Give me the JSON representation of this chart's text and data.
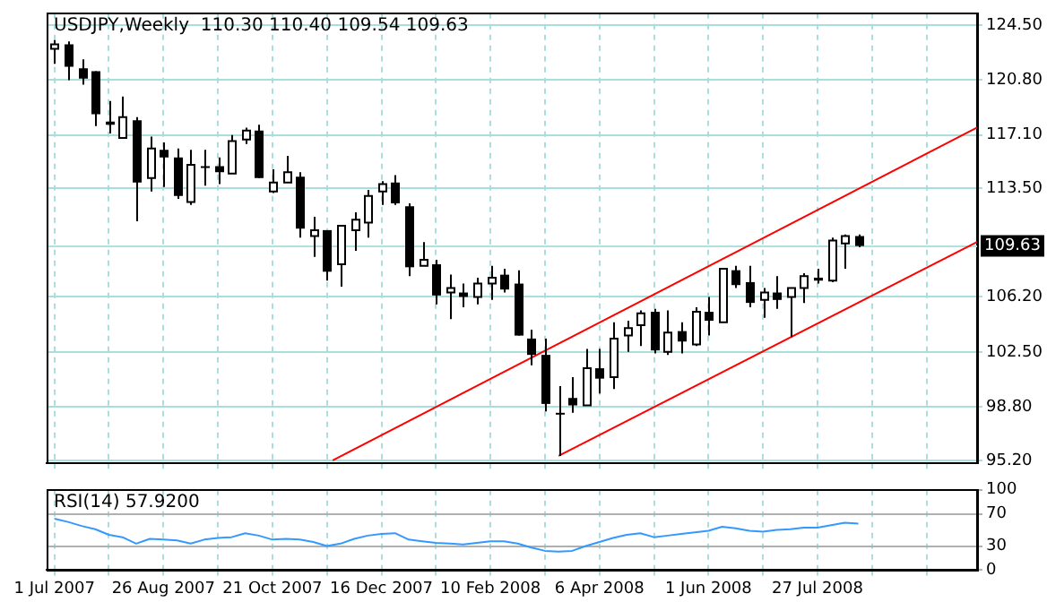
{
  "chart_data": [
    {
      "type": "candlestick",
      "title": "USDJPY,Weekly  110.30 110.40 109.54 109.63",
      "x": [
        "2007-07-01",
        "2007-07-08",
        "2007-07-15",
        "2007-07-22",
        "2007-07-29",
        "2007-08-05",
        "2007-08-12",
        "2007-08-19",
        "2007-08-26",
        "2007-09-02",
        "2007-09-09",
        "2007-09-16",
        "2007-09-23",
        "2007-09-30",
        "2007-10-07",
        "2007-10-14",
        "2007-10-21",
        "2007-10-28",
        "2007-11-04",
        "2007-11-11",
        "2007-11-18",
        "2007-11-25",
        "2007-12-02",
        "2007-12-09",
        "2007-12-16",
        "2007-12-23",
        "2007-12-30",
        "2008-01-06",
        "2008-01-13",
        "2008-01-20",
        "2008-01-27",
        "2008-02-03",
        "2008-02-10",
        "2008-02-17",
        "2008-02-24",
        "2008-03-02",
        "2008-03-09",
        "2008-03-16",
        "2008-03-23",
        "2008-03-30",
        "2008-04-06",
        "2008-04-13",
        "2008-04-20",
        "2008-04-27",
        "2008-05-04",
        "2008-05-11",
        "2008-05-18",
        "2008-05-25",
        "2008-06-01",
        "2008-06-08",
        "2008-06-15",
        "2008-06-22",
        "2008-06-29",
        "2008-07-06",
        "2008-07-13",
        "2008-07-20",
        "2008-07-27",
        "2008-08-03",
        "2008-08-10",
        "2008-08-17"
      ],
      "ohlc": [
        [
          122.9,
          123.5,
          121.9,
          123.2
        ],
        [
          123.2,
          123.4,
          120.8,
          121.7
        ],
        [
          121.6,
          122.2,
          120.5,
          120.9
        ],
        [
          121.4,
          121.4,
          117.7,
          118.5
        ],
        [
          118.0,
          119.4,
          117.2,
          117.8
        ],
        [
          116.9,
          119.7,
          116.9,
          118.3
        ],
        [
          118.1,
          118.3,
          111.3,
          113.9
        ],
        [
          114.2,
          117.0,
          113.3,
          116.2
        ],
        [
          116.1,
          116.6,
          113.6,
          115.6
        ],
        [
          115.6,
          116.2,
          112.8,
          113.0
        ],
        [
          112.6,
          116.1,
          112.4,
          115.1
        ],
        [
          115.0,
          116.1,
          113.7,
          115.0
        ],
        [
          115.0,
          115.6,
          113.8,
          114.6
        ],
        [
          114.5,
          117.1,
          114.5,
          116.7
        ],
        [
          116.8,
          117.6,
          116.5,
          117.4
        ],
        [
          117.4,
          117.8,
          114.2,
          114.2
        ],
        [
          113.3,
          114.8,
          113.2,
          113.9
        ],
        [
          113.9,
          115.7,
          113.9,
          114.6
        ],
        [
          114.3,
          114.6,
          110.2,
          110.8
        ],
        [
          110.3,
          111.6,
          108.9,
          110.7
        ],
        [
          110.7,
          110.7,
          107.3,
          107.9
        ],
        [
          108.4,
          111.0,
          106.9,
          111.0
        ],
        [
          110.7,
          111.9,
          109.3,
          111.4
        ],
        [
          111.2,
          113.4,
          110.2,
          113.0
        ],
        [
          113.3,
          114.0,
          112.4,
          113.8
        ],
        [
          113.9,
          114.4,
          112.4,
          112.5
        ],
        [
          112.3,
          112.5,
          107.6,
          108.2
        ],
        [
          108.3,
          109.9,
          108.3,
          108.7
        ],
        [
          108.4,
          108.7,
          105.7,
          106.3
        ],
        [
          106.5,
          107.7,
          104.7,
          106.8
        ],
        [
          106.5,
          107.1,
          105.5,
          106.2
        ],
        [
          106.2,
          107.5,
          105.7,
          107.1
        ],
        [
          107.1,
          108.3,
          106.0,
          107.5
        ],
        [
          107.7,
          108.1,
          106.5,
          106.7
        ],
        [
          107.1,
          108.0,
          103.6,
          103.6
        ],
        [
          103.4,
          104.0,
          101.6,
          102.3
        ],
        [
          102.3,
          103.4,
          98.5,
          99.0
        ],
        [
          98.4,
          100.2,
          95.5,
          98.3
        ],
        [
          99.4,
          100.8,
          98.4,
          98.9
        ],
        [
          98.9,
          102.7,
          98.9,
          101.4
        ],
        [
          101.4,
          102.7,
          99.7,
          100.7
        ],
        [
          100.8,
          104.5,
          100.0,
          103.4
        ],
        [
          103.6,
          104.6,
          102.5,
          104.1
        ],
        [
          104.3,
          105.3,
          102.9,
          105.1
        ],
        [
          105.2,
          105.4,
          102.4,
          102.6
        ],
        [
          102.5,
          105.3,
          102.3,
          103.8
        ],
        [
          103.9,
          104.5,
          102.4,
          103.2
        ],
        [
          103.0,
          105.5,
          102.9,
          105.2
        ],
        [
          105.2,
          106.2,
          103.6,
          104.6
        ],
        [
          104.5,
          108.1,
          104.5,
          108.1
        ],
        [
          108.0,
          108.3,
          106.8,
          107.0
        ],
        [
          107.2,
          108.3,
          105.5,
          105.8
        ],
        [
          106.0,
          106.8,
          104.8,
          106.5
        ],
        [
          106.5,
          107.6,
          105.4,
          106.0
        ],
        [
          106.2,
          106.8,
          103.5,
          106.8
        ],
        [
          106.8,
          107.8,
          105.8,
          107.6
        ],
        [
          107.5,
          108.1,
          107.1,
          107.3
        ],
        [
          107.3,
          110.2,
          107.2,
          110.0
        ],
        [
          109.8,
          110.4,
          108.1,
          110.3
        ],
        [
          110.3,
          110.4,
          109.54,
          109.63
        ]
      ],
      "series": [
        {
          "type": "line",
          "x": [
            "2007-11-21",
            "2008-10-17"
          ],
          "values": [
            95.2,
            117.6
          ],
          "color": "#ff0000"
        },
        {
          "type": "line",
          "x": [
            "2008-03-16",
            "2008-10-17"
          ],
          "values": [
            95.5,
            109.9
          ],
          "color": "#ff0000"
        }
      ],
      "xlim": [
        "2007-06-27",
        "2008-10-17"
      ],
      "xticks": [
        {
          "value": "2007-07-01",
          "label": null
        },
        {
          "value": "2007-07-29",
          "label": null
        },
        {
          "value": "2007-08-26",
          "label": null
        },
        {
          "value": "2007-09-23",
          "label": null
        },
        {
          "value": "2007-10-21",
          "label": null
        },
        {
          "value": "2007-11-18",
          "label": null
        },
        {
          "value": "2007-12-16",
          "label": null
        },
        {
          "value": "2008-01-13",
          "label": null
        },
        {
          "value": "2008-02-10",
          "label": null
        },
        {
          "value": "2008-03-09",
          "label": null
        },
        {
          "value": "2008-04-06",
          "label": null
        },
        {
          "value": "2008-05-04",
          "label": null
        },
        {
          "value": "2008-06-01",
          "label": null
        },
        {
          "value": "2008-06-29",
          "label": null
        },
        {
          "value": "2008-07-27",
          "label": null
        },
        {
          "value": "2008-08-24",
          "label": null
        },
        {
          "value": "2008-09-21",
          "label": null
        }
      ],
      "ylim": [
        95.0,
        125.3
      ],
      "yticks": [
        {
          "value": 95.2,
          "label": "95.20"
        },
        {
          "value": 98.8,
          "label": "98.80"
        },
        {
          "value": 102.5,
          "label": "102.50"
        },
        {
          "value": 106.2,
          "label": "106.20"
        },
        {
          "value": 113.5,
          "label": "113.50"
        },
        {
          "value": 117.1,
          "label": "117.10"
        },
        {
          "value": 120.8,
          "label": "120.80"
        },
        {
          "value": 124.5,
          "label": "124.50"
        }
      ],
      "ref_lines": [
        {
          "axis": "y",
          "value": 109.63,
          "label": "109.63",
          "color": "#b0e0e0"
        }
      ],
      "grid": true,
      "tick_labels": "y",
      "legend": false,
      "marker": "none"
    },
    {
      "type": "line",
      "title": "RSI(14) 57.9200",
      "x": [
        "2007-07-01",
        "2007-07-08",
        "2007-07-15",
        "2007-07-22",
        "2007-07-29",
        "2007-08-05",
        "2007-08-12",
        "2007-08-19",
        "2007-08-26",
        "2007-09-02",
        "2007-09-09",
        "2007-09-16",
        "2007-09-23",
        "2007-09-30",
        "2007-10-07",
        "2007-10-14",
        "2007-10-21",
        "2007-10-28",
        "2007-11-04",
        "2007-11-11",
        "2007-11-18",
        "2007-11-25",
        "2007-12-02",
        "2007-12-09",
        "2007-12-16",
        "2007-12-23",
        "2007-12-30",
        "2008-01-06",
        "2008-01-13",
        "2008-01-20",
        "2008-01-27",
        "2008-02-03",
        "2008-02-10",
        "2008-02-17",
        "2008-02-24",
        "2008-03-02",
        "2008-03-09",
        "2008-03-16",
        "2008-03-23",
        "2008-03-30",
        "2008-04-06",
        "2008-04-13",
        "2008-04-20",
        "2008-04-27",
        "2008-05-04",
        "2008-05-11",
        "2008-05-18",
        "2008-05-25",
        "2008-06-01",
        "2008-06-08",
        "2008-06-15",
        "2008-06-22",
        "2008-06-29",
        "2008-07-06",
        "2008-07-13",
        "2008-07-20",
        "2008-07-27",
        "2008-08-03",
        "2008-08-10",
        "2008-08-17"
      ],
      "series": [
        {
          "color": "#3399ff",
          "values": [
            64,
            60,
            55,
            51,
            44,
            41,
            33,
            39,
            38,
            37,
            33,
            38,
            40,
            41,
            46,
            43,
            38,
            39,
            38,
            35,
            30,
            33,
            39,
            43,
            45,
            46,
            38,
            36,
            34,
            33,
            32,
            34,
            36,
            36,
            33,
            28,
            24,
            23,
            24,
            30,
            35,
            40,
            44,
            46,
            41,
            43,
            45,
            47,
            49,
            54,
            52,
            49,
            48,
            50,
            51,
            53,
            53,
            56,
            59,
            58
          ]
        }
      ],
      "xlim": [
        "2007-06-27",
        "2008-10-17"
      ],
      "xticks": [
        {
          "value": "2007-07-01",
          "label": "1 Jul 2007"
        },
        {
          "value": "2007-07-29",
          "label": null
        },
        {
          "value": "2007-08-26",
          "label": "26 Aug 2007"
        },
        {
          "value": "2007-09-23",
          "label": null
        },
        {
          "value": "2007-10-21",
          "label": "21 Oct 2007"
        },
        {
          "value": "2007-11-18",
          "label": null
        },
        {
          "value": "2007-12-16",
          "label": "16 Dec 2007"
        },
        {
          "value": "2008-01-13",
          "label": null
        },
        {
          "value": "2008-02-10",
          "label": "10 Feb 2008"
        },
        {
          "value": "2008-03-09",
          "label": null
        },
        {
          "value": "2008-04-06",
          "label": "6 Apr 2008"
        },
        {
          "value": "2008-05-04",
          "label": null
        },
        {
          "value": "2008-06-01",
          "label": "1 Jun 2008"
        },
        {
          "value": "2008-06-29",
          "label": null
        },
        {
          "value": "2008-07-27",
          "label": "27 Jul 2008"
        },
        {
          "value": "2008-08-24",
          "label": null
        },
        {
          "value": "2008-09-21",
          "label": null
        }
      ],
      "ylim": [
        0,
        100
      ],
      "yticks": [
        0,
        30,
        70,
        100
      ],
      "grid": true,
      "legend": false,
      "marker": "none"
    }
  ]
}
